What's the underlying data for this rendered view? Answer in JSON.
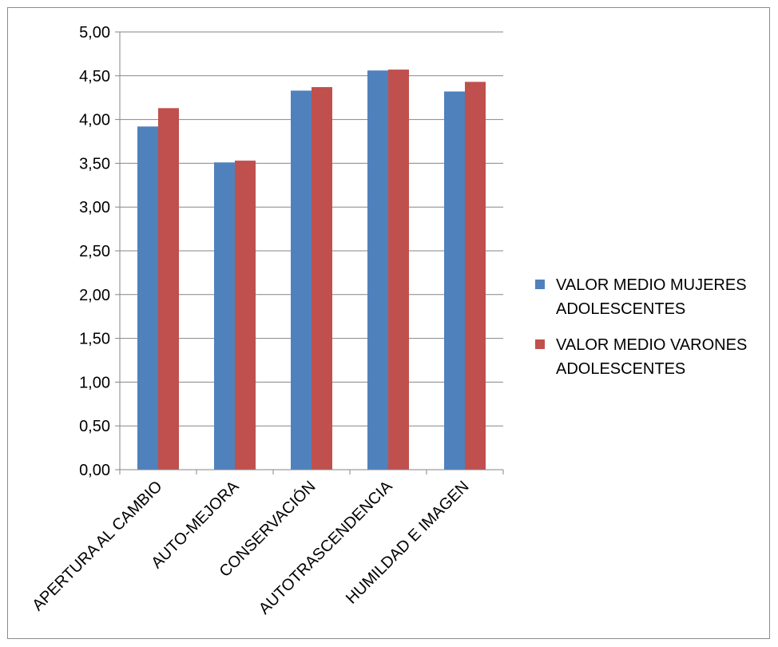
{
  "chart_data": {
    "type": "bar",
    "title": "",
    "xlabel": "",
    "ylabel": "",
    "ylim": [
      0,
      5
    ],
    "ytick_step": 0.5,
    "ytick_labels": [
      "0,00",
      "0,50",
      "1,00",
      "1,50",
      "2,00",
      "2,50",
      "3,00",
      "3,50",
      "4,00",
      "4,50",
      "5,00"
    ],
    "grid": true,
    "legend_position": "right",
    "categories": [
      "APERTURA AL CAMBIO",
      "AUTO-MEJORA",
      "CONSERVACIÓN",
      "AUTOTRASCENDENCIA",
      "HUMILDAD E IMAGEN"
    ],
    "series": [
      {
        "name": "VALOR MEDIO MUJERES ADOLESCENTES",
        "legend_lines": [
          "VALOR MEDIO MUJERES",
          "ADOLESCENTES"
        ],
        "color": "#4F81BD",
        "values": [
          3.92,
          3.51,
          4.33,
          4.56,
          4.32
        ]
      },
      {
        "name": "VALOR MEDIO VARONES ADOLESCENTES",
        "legend_lines": [
          "VALOR MEDIO VARONES",
          "ADOLESCENTES"
        ],
        "color": "#C0504D",
        "values": [
          4.13,
          3.53,
          4.37,
          4.57,
          4.43
        ]
      }
    ]
  }
}
